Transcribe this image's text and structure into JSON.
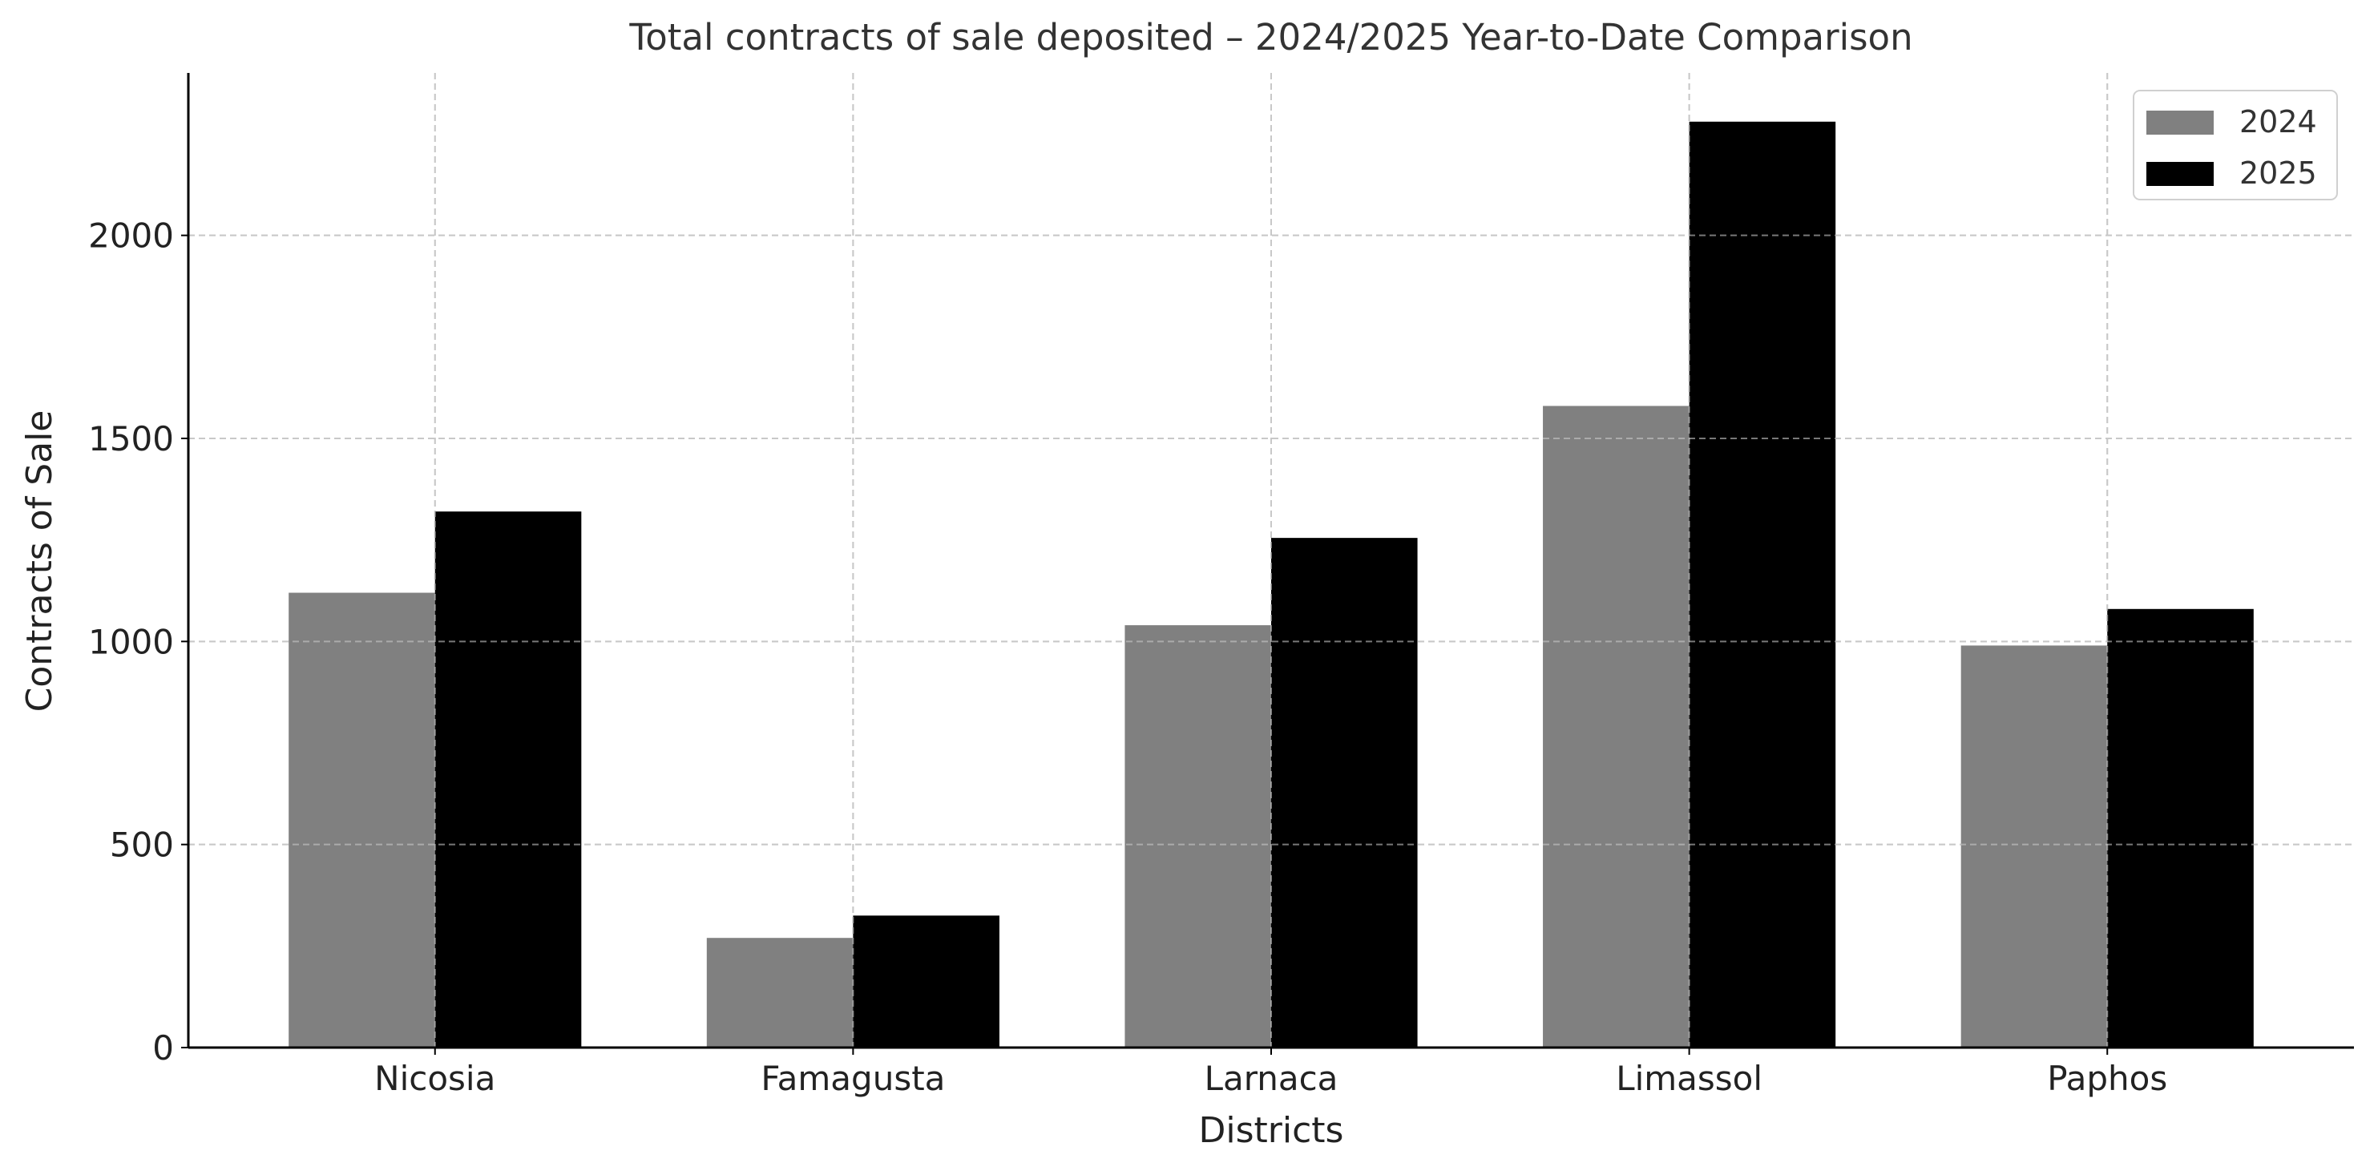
{
  "chart_data": {
    "type": "bar",
    "title": "Total contracts of sale deposited – 2024/2025 Year-to-Date Comparison",
    "xlabel": "Districts",
    "ylabel": "Contracts of Sale",
    "categories": [
      "Nicosia",
      "Famagusta",
      "Larnaca",
      "Limassol",
      "Paphos"
    ],
    "series": [
      {
        "name": "2024",
        "color": "#808080",
        "values": [
          1120,
          270,
          1040,
          1580,
          990
        ]
      },
      {
        "name": "2025",
        "color": "#000000",
        "values": [
          1320,
          325,
          1255,
          2280,
          1080
        ]
      }
    ],
    "ylim": [
      0,
      2400
    ],
    "yticks": [
      0,
      500,
      1000,
      1500,
      2000
    ],
    "ytick_labels": [
      "0",
      "500",
      "1000",
      "1500",
      "2000"
    ],
    "grid": true,
    "legend_position": "top-right"
  }
}
